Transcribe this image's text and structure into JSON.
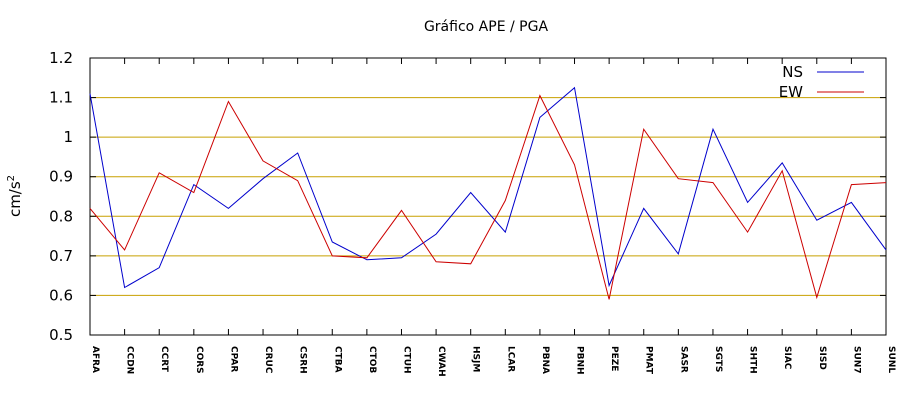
{
  "chart_data": {
    "type": "line",
    "title": "Gráfico  APE / PGA",
    "ylabel": "cm/s",
    "ylabel_superscript": "2",
    "xlabel": "",
    "ylim": [
      0.5,
      1.2
    ],
    "yticks": [
      0.5,
      0.6,
      0.7,
      0.8,
      0.9,
      1,
      1.1,
      1.2
    ],
    "ytick_labels": [
      "0.5",
      "0.6",
      "0.7",
      "0.8",
      "0.9",
      "1",
      "1.1",
      "1.2"
    ],
    "grid": "horizontal",
    "grid_color": "#c8a000",
    "legend_position": "top-right",
    "categories": [
      "AFRA",
      "CCDN",
      "CCRT",
      "CORS",
      "CPAR",
      "CRUC",
      "CSRH",
      "CTBA",
      "CTOB",
      "CTUH",
      "CWAH",
      "HSJM",
      "LCAR",
      "PBNA",
      "PBNH",
      "PEZE",
      "PMAT",
      "SASR",
      "SGTS",
      "SHTH",
      "SIAC",
      "SISD",
      "SUN7",
      "SUNL"
    ],
    "series": [
      {
        "name": "NS",
        "color": "#0000cc",
        "values": [
          1.11,
          0.62,
          0.67,
          0.88,
          0.82,
          0.895,
          0.96,
          0.735,
          0.69,
          0.695,
          0.755,
          0.86,
          0.76,
          1.05,
          1.125,
          0.625,
          0.82,
          0.705,
          1.02,
          0.835,
          0.935,
          0.79,
          0.835,
          0.715
        ]
      },
      {
        "name": "EW",
        "color": "#cc0000",
        "values": [
          0.82,
          0.715,
          0.91,
          0.86,
          1.09,
          0.94,
          0.89,
          0.7,
          0.695,
          0.815,
          0.685,
          0.68,
          0.84,
          1.105,
          0.93,
          0.59,
          1.02,
          0.895,
          0.885,
          0.76,
          0.915,
          0.595,
          0.88,
          0.885
        ]
      }
    ]
  }
}
